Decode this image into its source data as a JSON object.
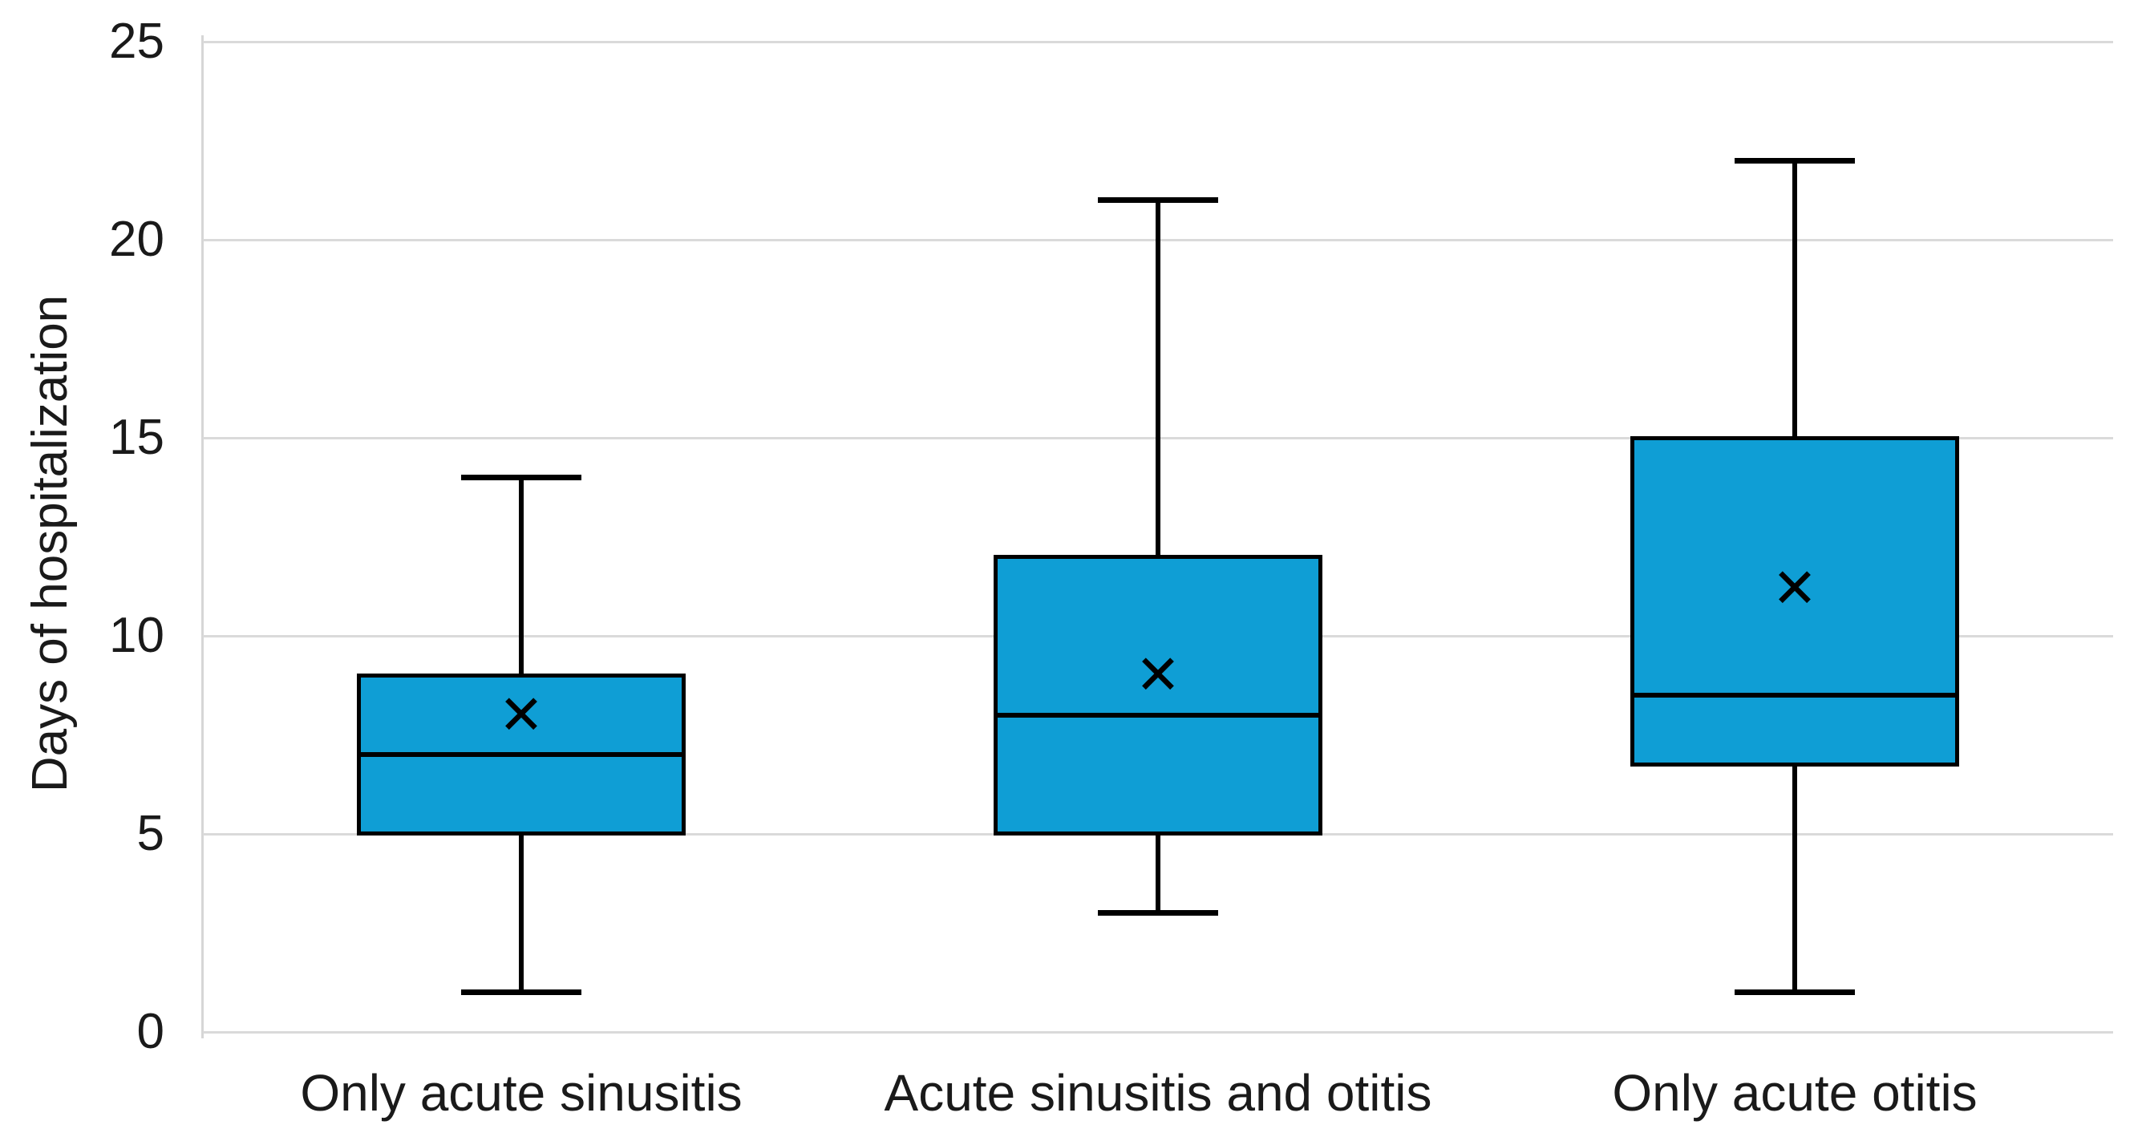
{
  "chart_data": {
    "type": "boxplot",
    "title": "",
    "xlabel": "",
    "ylabel": "Days of hospitalization",
    "ylim": [
      0,
      25
    ],
    "yticks": [
      0,
      5,
      10,
      15,
      20,
      25
    ],
    "grid": true,
    "legend": false,
    "mean_marker_glyph": "✕",
    "categories": [
      "Only acute sinusitis",
      "Acute sinusitis and otitis",
      "Only acute otitis"
    ],
    "series": [
      {
        "name": "Only acute sinusitis",
        "min": 1,
        "q1": 5,
        "median": 7,
        "q3": 9,
        "max": 14,
        "mean": 8
      },
      {
        "name": "Acute sinusitis and otitis",
        "min": 3,
        "q1": 5,
        "median": 8,
        "q3": 12,
        "max": 21,
        "mean": 9
      },
      {
        "name": "Only acute otitis",
        "min": 1,
        "q1": 6.75,
        "median": 8.5,
        "q3": 15,
        "max": 22,
        "mean": 11.2
      }
    ],
    "colors": {
      "box_fill": "#0f9ed5",
      "box_border": "#000000",
      "whisker": "#000000",
      "median": "#000000",
      "mean_marker": "#000000",
      "gridline": "#dadada",
      "axis_text": "#1a1a1a",
      "background": "#ffffff"
    }
  }
}
